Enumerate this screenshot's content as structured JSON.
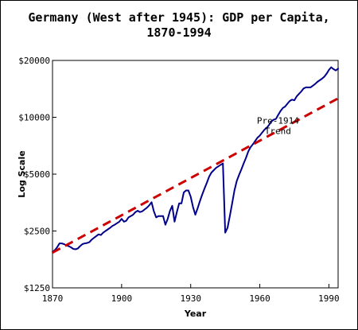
{
  "chart_data": {
    "type": "line",
    "title": [
      "Germany (West after 1945): GDP per Capita,",
      "1870-1994"
    ],
    "xlabel": "Year",
    "ylabel": "Log Scale",
    "x_scale": "linear",
    "y_scale": "log",
    "xlim": [
      1870,
      1994
    ],
    "ylim": [
      1250,
      20000
    ],
    "x_ticks": [
      1870,
      1900,
      1930,
      1960,
      1990
    ],
    "x_tick_labels": [
      "1870",
      "1900",
      "1930",
      "1960",
      "1990"
    ],
    "y_ticks": [
      1250,
      2500,
      5000,
      10000,
      20000
    ],
    "y_tick_labels": [
      "$1250",
      "$2500",
      "$5000",
      "$10000",
      "$20000"
    ],
    "grid": false,
    "legend": "none",
    "series": [
      {
        "name": "",
        "style": "solid",
        "color": "#00008B",
        "x": [
          1870,
          1871,
          1872,
          1873,
          1874,
          1875,
          1876,
          1877,
          1878,
          1879,
          1880,
          1881,
          1882,
          1883,
          1884,
          1885,
          1886,
          1887,
          1888,
          1889,
          1890,
          1891,
          1892,
          1893,
          1894,
          1895,
          1896,
          1897,
          1898,
          1899,
          1900,
          1901,
          1902,
          1903,
          1904,
          1905,
          1906,
          1907,
          1908,
          1909,
          1910,
          1911,
          1912,
          1913,
          1914,
          1915,
          1916,
          1917,
          1918,
          1919,
          1920,
          1921,
          1922,
          1923,
          1924,
          1925,
          1926,
          1927,
          1928,
          1929,
          1930,
          1931,
          1932,
          1933,
          1934,
          1935,
          1936,
          1937,
          1938,
          1939,
          1940,
          1941,
          1942,
          1943,
          1944,
          1945,
          1946,
          1947,
          1948,
          1949,
          1950,
          1951,
          1952,
          1953,
          1954,
          1955,
          1956,
          1957,
          1958,
          1959,
          1960,
          1961,
          1962,
          1963,
          1964,
          1965,
          1966,
          1967,
          1968,
          1969,
          1970,
          1971,
          1972,
          1973,
          1974,
          1975,
          1976,
          1977,
          1978,
          1979,
          1980,
          1981,
          1982,
          1983,
          1984,
          1985,
          1986,
          1987,
          1988,
          1989,
          1990,
          1991,
          1992,
          1993,
          1994
        ],
        "y": [
          1940,
          1980,
          2050,
          2150,
          2150,
          2130,
          2100,
          2080,
          2050,
          2010,
          2000,
          2020,
          2080,
          2130,
          2150,
          2160,
          2180,
          2250,
          2300,
          2350,
          2400,
          2380,
          2450,
          2500,
          2550,
          2600,
          2660,
          2700,
          2750,
          2800,
          2900,
          2800,
          2830,
          2950,
          3000,
          3050,
          3150,
          3200,
          3150,
          3180,
          3250,
          3320,
          3420,
          3550,
          3180,
          2950,
          3000,
          3000,
          3000,
          2700,
          2900,
          3200,
          3400,
          2800,
          3150,
          3500,
          3500,
          4000,
          4100,
          4100,
          3800,
          3350,
          3050,
          3300,
          3600,
          3900,
          4200,
          4500,
          4850,
          5100,
          5250,
          5400,
          5500,
          5600,
          5700,
          2450,
          2600,
          3000,
          3500,
          4100,
          4600,
          4950,
          5300,
          5700,
          6100,
          6600,
          6950,
          7200,
          7500,
          7800,
          8000,
          8300,
          8600,
          8800,
          9100,
          9500,
          9700,
          9800,
          10300,
          10800,
          11200,
          11400,
          11800,
          12200,
          12400,
          12300,
          12900,
          13300,
          13700,
          14200,
          14400,
          14400,
          14400,
          14700,
          15000,
          15400,
          15700,
          16000,
          16400,
          17000,
          17800,
          18400,
          18000,
          17700,
          18100
        ]
      },
      {
        "name": "Pre-1914 Trend",
        "style": "dashed",
        "color": "#CC0000",
        "x": [
          1870,
          1994
        ],
        "y": [
          1920,
          12600
        ]
      }
    ],
    "annotations": [
      {
        "text": [
          "Pre-1914",
          "Trend"
        ],
        "x": 1962,
        "y": 10000
      }
    ]
  }
}
